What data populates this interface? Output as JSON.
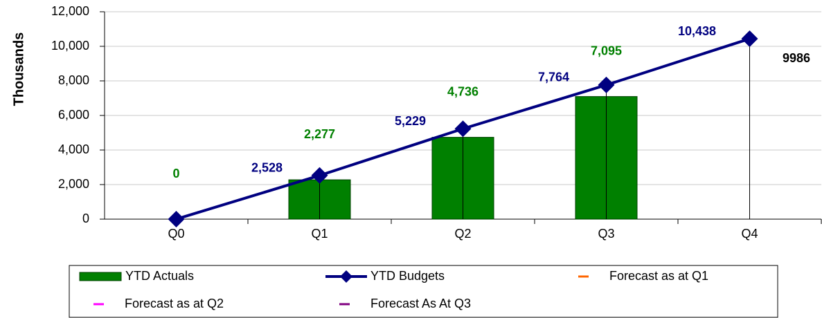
{
  "chart_data": {
    "type": "bar",
    "y_label": "Thousands",
    "categories": [
      "Q0",
      "Q1",
      "Q2",
      "Q3",
      "Q4"
    ],
    "series": [
      {
        "name": "YTD Actuals",
        "type": "bar",
        "color": "#008000",
        "values": [
          0,
          2277,
          4736,
          7095,
          null
        ],
        "value_labels": [
          "0",
          "2,277",
          "4,736",
          "7,095",
          null
        ]
      },
      {
        "name": "YTD Budgets",
        "type": "line",
        "color": "#000080",
        "values": [
          0,
          2528,
          5229,
          7764,
          10438
        ],
        "value_labels": [
          null,
          "2,528",
          "5,229",
          "7,764",
          "10,438"
        ]
      },
      {
        "name": "Forecast as at Q1",
        "type": "line",
        "color": "#ff6600",
        "values": [
          null,
          null,
          null,
          null,
          null
        ]
      },
      {
        "name": "Forecast as at Q2",
        "type": "line",
        "color": "#ff00ff",
        "values": [
          null,
          null,
          null,
          null,
          null
        ]
      },
      {
        "name": "Forecast As At Q3",
        "type": "line",
        "color": "#800080",
        "values": [
          null,
          null,
          null,
          null,
          null
        ]
      }
    ],
    "annotations": [
      {
        "text": "9986"
      }
    ],
    "ylim": [
      0,
      12000
    ],
    "yticks": [
      0,
      {
        "value": 2000,
        "label": "2,000"
      },
      {
        "value": 4000,
        "label": "4,000"
      },
      {
        "value": 6000,
        "label": "6,000"
      },
      {
        "value": 8000,
        "label": "8,000"
      },
      {
        "value": 10000,
        "label": "10,000"
      },
      {
        "value": 12000,
        "label": "12,000"
      }
    ],
    "grid": true
  }
}
